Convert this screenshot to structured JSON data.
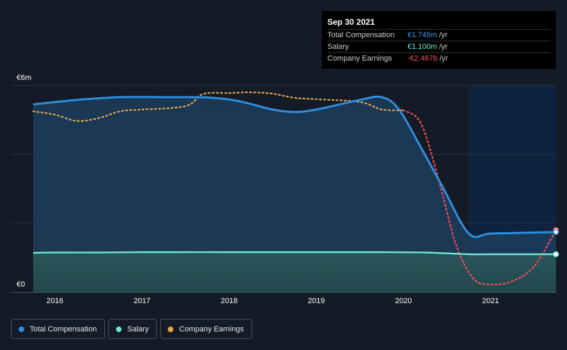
{
  "tooltip": {
    "date": "Sep 30 2021",
    "rows": [
      {
        "label": "Total Compensation",
        "value": "€1.745m",
        "unit": "/yr",
        "color": "#3a9be9"
      },
      {
        "label": "Salary",
        "value": "€1.100m",
        "unit": "/yr",
        "color": "#6ee7d6"
      },
      {
        "label": "Company Earnings",
        "value": "-€2.467b",
        "unit": "/yr",
        "color": "#ff4d5a"
      }
    ]
  },
  "legend": [
    {
      "label": "Total Compensation",
      "color": "#2f8fe0"
    },
    {
      "label": "Salary",
      "color": "#6ee7d6"
    },
    {
      "label": "Company Earnings",
      "color": "#e8a951"
    }
  ],
  "chart_data": {
    "type": "line",
    "title": "",
    "y_unit_label_top": "€6m",
    "y_unit_label_bottom": "€0",
    "ylim": [
      0,
      6
    ],
    "xlim": [
      2015.75,
      2021.75
    ],
    "x_ticks": [
      2016,
      2017,
      2018,
      2019,
      2020,
      2021
    ],
    "x_tick_labels": [
      "2016",
      "2017",
      "2018",
      "2019",
      "2020",
      "2021"
    ],
    "y_gridlines": [
      2,
      4
    ],
    "highlight_start": 2020.75,
    "series": [
      {
        "name": "Total Compensation",
        "color": "#2f8fe0",
        "style": "solid",
        "x": [
          2015.75,
          2016.25,
          2016.75,
          2017.25,
          2017.75,
          2018.1,
          2018.5,
          2018.75,
          2019.0,
          2019.5,
          2019.75,
          2019.95,
          2020.2,
          2020.45,
          2020.75,
          2021.0,
          2021.5,
          2021.75
        ],
        "values": [
          5.45,
          5.58,
          5.66,
          5.66,
          5.65,
          5.55,
          5.3,
          5.23,
          5.3,
          5.58,
          5.66,
          5.3,
          4.2,
          3.05,
          1.7,
          1.7,
          1.73,
          1.745
        ]
      },
      {
        "name": "Salary",
        "color": "#6ee7d6",
        "style": "solid",
        "x": [
          2015.75,
          2016.0,
          2016.5,
          2017.0,
          2018.0,
          2019.0,
          2019.75,
          2020.25,
          2020.75,
          2021.0,
          2021.5,
          2021.75
        ],
        "values": [
          1.14,
          1.15,
          1.15,
          1.16,
          1.16,
          1.16,
          1.16,
          1.15,
          1.1,
          1.1,
          1.1,
          1.1
        ]
      },
      {
        "name": "Company Earnings",
        "color": "#e8a951",
        "negative_color": "#ff4d5a",
        "style": "dotted",
        "x": [
          2015.75,
          2016.0,
          2016.25,
          2016.5,
          2016.75,
          2017.0,
          2017.5,
          2017.7,
          2018.0,
          2018.25,
          2018.5,
          2018.75,
          2019.0,
          2019.5,
          2019.75,
          2020.0,
          2020.2,
          2020.4,
          2020.6,
          2020.8,
          2021.0,
          2021.25,
          2021.5,
          2021.75
        ],
        "values": [
          5.25,
          5.15,
          4.97,
          5.05,
          5.25,
          5.3,
          5.4,
          5.75,
          5.78,
          5.8,
          5.76,
          5.64,
          5.6,
          5.52,
          5.3,
          5.28,
          4.9,
          3.3,
          1.4,
          0.4,
          0.22,
          0.32,
          0.75,
          1.8
        ]
      }
    ]
  }
}
